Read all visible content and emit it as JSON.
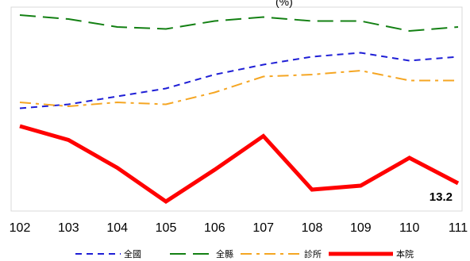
{
  "chart_data": {
    "type": "line",
    "x": [
      "102",
      "103",
      "104",
      "105",
      "106",
      "107",
      "108",
      "109",
      "110",
      "111"
    ],
    "title_fragment": "(%)",
    "ylim": [
      0,
      100
    ],
    "grid": false,
    "legend_position": "bottom",
    "series": [
      {
        "name": "全國",
        "values": [
          51,
          53,
          57,
          61,
          68,
          73,
          77,
          79,
          75,
          77
        ],
        "color": "#1f1fd6",
        "dash": "dashed"
      },
      {
        "name": "全縣",
        "values": [
          98,
          96,
          92,
          91,
          95,
          97,
          95,
          95,
          90,
          92
        ],
        "color": "#138013",
        "dash": "long-dash"
      },
      {
        "name": "診所",
        "values": [
          54,
          52,
          54,
          53,
          59,
          67,
          68,
          70,
          65,
          65
        ],
        "color": "#f5a623",
        "dash": "dash-dot"
      },
      {
        "name": "本院",
        "values": [
          42,
          35,
          21,
          4,
          20,
          37,
          10,
          12,
          26,
          13.2
        ],
        "color": "#ff0000",
        "dash": "solid"
      }
    ],
    "annotations": [
      {
        "series": "本院",
        "x": "111",
        "text": "13.2"
      }
    ]
  }
}
